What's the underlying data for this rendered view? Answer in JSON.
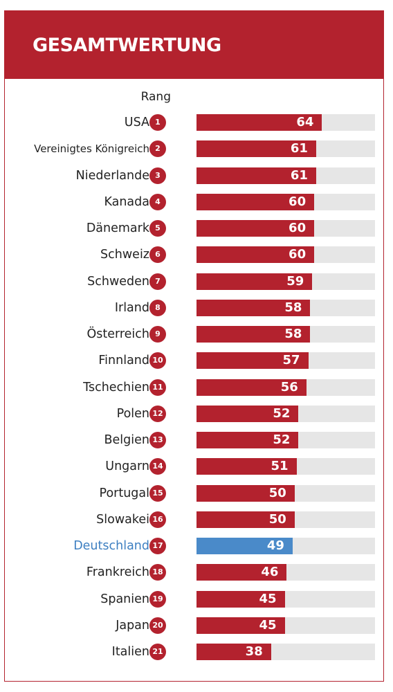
{
  "header": {
    "title": "GESAMTWERTUNG"
  },
  "rank_label": "Rang",
  "colors": {
    "default_bar": "#b3222e",
    "highlight_bar": "#4a8ac9",
    "track": "#e6e6e6",
    "highlight_text": "#3d7fc1"
  },
  "chart_data": {
    "type": "bar",
    "orientation": "horizontal",
    "xlim": [
      0,
      91
    ],
    "highlight": "Deutschland",
    "categories": [
      "USA",
      "Vereinigtes Königreich",
      "Niederlande",
      "Kanada",
      "Dänemark",
      "Schweiz",
      "Schweden",
      "Irland",
      "Österreich",
      "Finnland",
      "Tschechien",
      "Polen",
      "Belgien",
      "Ungarn",
      "Portugal",
      "Slowakei",
      "Deutschland",
      "Frankreich",
      "Spanien",
      "Japan",
      "Italien"
    ],
    "ranks": [
      "1",
      "2",
      "3",
      "4",
      "5",
      "6",
      "7",
      "8",
      "9",
      "10",
      "11",
      "12",
      "13",
      "14",
      "15",
      "16",
      "17",
      "18",
      "19",
      "20",
      "21"
    ],
    "values": [
      64,
      61,
      61,
      60,
      60,
      60,
      59,
      58,
      58,
      57,
      56,
      52,
      52,
      51,
      50,
      50,
      49,
      46,
      45,
      45,
      38
    ]
  }
}
